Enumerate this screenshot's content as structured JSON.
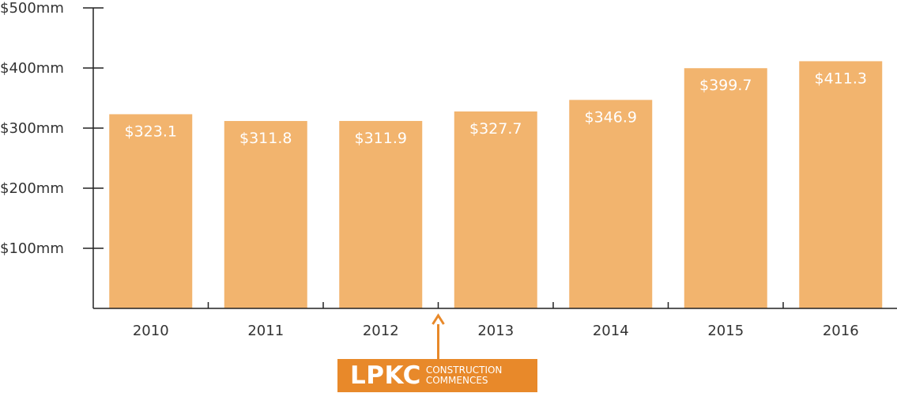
{
  "chart_data": {
    "type": "bar",
    "categories": [
      "2010",
      "2011",
      "2012",
      "2013",
      "2014",
      "2015",
      "2016"
    ],
    "values": [
      323.1,
      311.8,
      311.9,
      327.7,
      346.9,
      399.7,
      411.3
    ],
    "value_labels": [
      "$323.1",
      "$311.8",
      "$311.9",
      "$327.7",
      "$346.9",
      "$399.7",
      "$411.3"
    ],
    "y_ticks": [
      {
        "value": 100,
        "label": "$100mm"
      },
      {
        "value": 200,
        "label": "$200mm"
      },
      {
        "value": 300,
        "label": "$300mm"
      },
      {
        "value": 400,
        "label": "$400mm"
      },
      {
        "value": 500,
        "label": "$500mm"
      }
    ],
    "ylim": [
      0,
      500
    ],
    "grid": false,
    "title": "",
    "xlabel": "",
    "ylabel": "",
    "bar_color": "#f2b46e",
    "annotation": {
      "title": "LPKC",
      "line1": "CONSTRUCTION",
      "line2": "COMMENCES",
      "between": [
        "2012",
        "2013"
      ],
      "color": "#e8892a"
    }
  }
}
